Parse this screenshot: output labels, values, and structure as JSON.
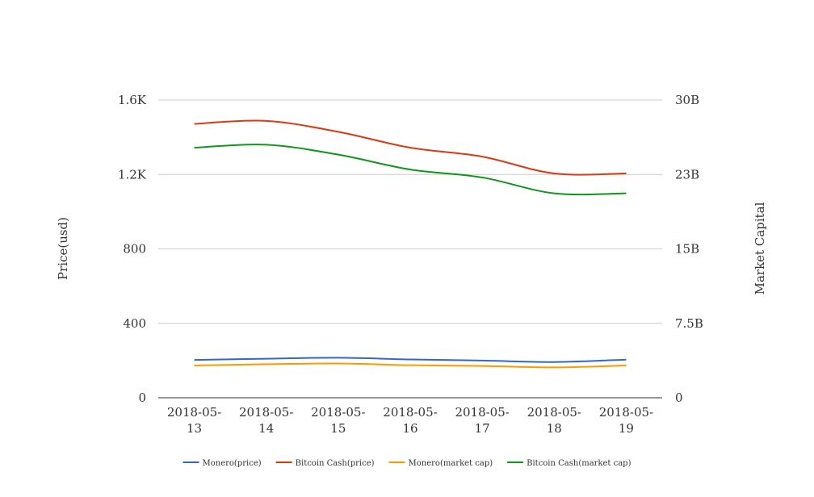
{
  "chart_data": {
    "type": "line",
    "title": "",
    "x": [
      "2018-05-13",
      "2018-05-14",
      "2018-05-15",
      "2018-05-16",
      "2018-05-17",
      "2018-05-18",
      "2018-05-19"
    ],
    "x_tick_labels": [
      [
        "2018-05-",
        "13"
      ],
      [
        "2018-05-",
        "14"
      ],
      [
        "2018-05-",
        "15"
      ],
      [
        "2018-05-",
        "16"
      ],
      [
        "2018-05-",
        "17"
      ],
      [
        "2018-05-",
        "18"
      ],
      [
        "2018-05-",
        "19"
      ]
    ],
    "y_left": {
      "label": "Price(usd)",
      "range": [
        0,
        1600
      ],
      "ticks": [
        0,
        400,
        800,
        1200,
        1600
      ],
      "tick_labels": [
        "0",
        "400",
        "800",
        "1.2K",
        "1.6K"
      ]
    },
    "y_right": {
      "label": "Market Capital",
      "range": [
        0,
        30000000000
      ],
      "ticks": [
        0,
        7500000000,
        15000000000,
        22500000000,
        30000000000
      ],
      "tick_labels": [
        "0",
        "7.5B",
        "15B",
        "23B",
        "30B"
      ]
    },
    "grid": true,
    "legend_position": "bottom",
    "series": [
      {
        "name": "Monero(price)",
        "axis": "left",
        "color": "#3366cc",
        "values": [
          203,
          210,
          215,
          206,
          200,
          192,
          205
        ]
      },
      {
        "name": "Bitcoin Cash(price)",
        "axis": "right",
        "color": "#dc3912",
        "values": [
          27600000000,
          27900000000,
          26800000000,
          25200000000,
          24300000000,
          22600000000,
          22600000000
        ]
      },
      {
        "name": "Monero(market cap)",
        "axis": "right",
        "color": "#ff9900",
        "values": [
          3250000000,
          3380000000,
          3450000000,
          3280000000,
          3200000000,
          3060000000,
          3250000000
        ]
      },
      {
        "name": "Bitcoin Cash(market cap)",
        "axis": "right",
        "color": "#109618",
        "values": [
          25200000000,
          25500000000,
          24500000000,
          23000000000,
          22200000000,
          20600000000,
          20600000000
        ]
      }
    ]
  }
}
